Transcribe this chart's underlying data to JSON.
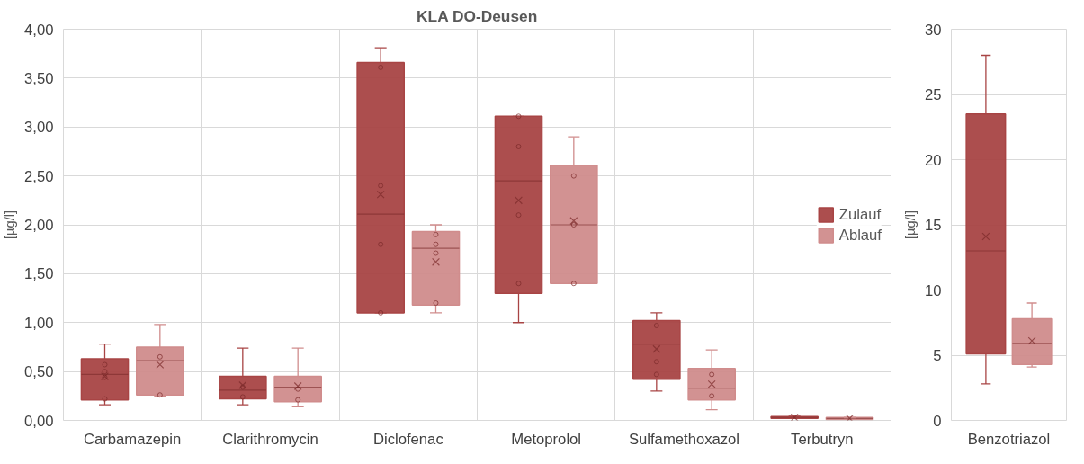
{
  "chart_data": [
    {
      "type": "box",
      "title": "KLA DO-Deusen",
      "ylabel": "[µg/l]",
      "categories": [
        "Carbamazepin",
        "Clarithromycin",
        "Diclofenac",
        "Metoprolol",
        "Sulfamethoxazol",
        "Terbutryn"
      ],
      "ylim": [
        0,
        4
      ],
      "yticks": [
        {
          "value": 0,
          "label": "0,00"
        },
        {
          "value": 0.5,
          "label": "0,50"
        },
        {
          "value": 1,
          "label": "1,00"
        },
        {
          "value": 1.5,
          "label": "1,50"
        },
        {
          "value": 2,
          "label": "2,00"
        },
        {
          "value": 2.5,
          "label": "2,50"
        },
        {
          "value": 3,
          "label": "3,00"
        },
        {
          "value": 3.5,
          "label": "3,50"
        },
        {
          "value": 4,
          "label": "4,00"
        }
      ],
      "grid": true,
      "legend": "right",
      "series": [
        {
          "name": "Zulauf",
          "color": "#a84444",
          "boxes": [
            {
              "low": 0.16,
              "q1": 0.21,
              "median": 0.47,
              "q3": 0.63,
              "high": 0.78,
              "mean": 0.45,
              "outliers": [
                0.57,
                0.5,
                0.44,
                0.22
              ]
            },
            {
              "low": 0.16,
              "q1": 0.22,
              "median": 0.31,
              "q3": 0.45,
              "high": 0.74,
              "mean": 0.36,
              "outliers": [
                0.34,
                0.24
              ]
            },
            {
              "low": 1.1,
              "q1": 1.1,
              "median": 2.11,
              "q3": 3.66,
              "high": 3.81,
              "mean": 2.31,
              "outliers": [
                3.61,
                2.4,
                1.8,
                1.1
              ]
            },
            {
              "low": 1.0,
              "q1": 1.3,
              "median": 2.45,
              "q3": 3.11,
              "high": 3.11,
              "mean": 2.25,
              "outliers": [
                3.11,
                2.8,
                2.1,
                1.4
              ]
            },
            {
              "low": 0.3,
              "q1": 0.42,
              "median": 0.78,
              "q3": 1.02,
              "high": 1.1,
              "mean": 0.73,
              "outliers": [
                0.97,
                0.6,
                0.47
              ]
            },
            {
              "low": 0.02,
              "q1": 0.02,
              "median": 0.03,
              "q3": 0.04,
              "high": 0.05,
              "mean": 0.03
            }
          ]
        },
        {
          "name": "Ablauf",
          "color": "#d08c8c",
          "boxes": [
            {
              "low": 0.25,
              "q1": 0.26,
              "median": 0.61,
              "q3": 0.75,
              "high": 0.98,
              "mean": 0.57,
              "outliers": [
                0.65,
                0.26
              ]
            },
            {
              "low": 0.14,
              "q1": 0.19,
              "median": 0.34,
              "q3": 0.45,
              "high": 0.74,
              "mean": 0.35,
              "outliers": [
                0.32,
                0.21
              ]
            },
            {
              "low": 1.1,
              "q1": 1.18,
              "median": 1.76,
              "q3": 1.93,
              "high": 2.0,
              "mean": 1.62,
              "outliers": [
                1.9,
                1.8,
                1.71,
                1.2
              ]
            },
            {
              "low": 1.4,
              "q1": 1.4,
              "median": 2.0,
              "q3": 2.61,
              "high": 2.9,
              "mean": 2.04,
              "outliers": [
                2.5,
                2.0,
                1.4
              ]
            },
            {
              "low": 0.11,
              "q1": 0.21,
              "median": 0.33,
              "q3": 0.53,
              "high": 0.72,
              "mean": 0.37,
              "outliers": [
                0.47,
                0.25
              ]
            },
            {
              "low": 0.01,
              "q1": 0.01,
              "median": 0.02,
              "q3": 0.03,
              "high": 0.03,
              "mean": 0.02
            }
          ]
        }
      ]
    },
    {
      "type": "box",
      "ylabel": "[µg/l]",
      "categories": [
        "Benzotriazol"
      ],
      "ylim": [
        0,
        30
      ],
      "yticks": [
        0,
        5,
        10,
        15,
        20,
        25,
        30
      ],
      "grid": true,
      "series": [
        {
          "color": "#a84444",
          "boxes": [
            {
              "low": 2.8,
              "q1": 5.1,
              "median": 13.0,
              "q3": 23.5,
              "high": 28.0,
              "mean": 14.1
            }
          ]
        },
        {
          "color": "#d08c8c",
          "boxes": [
            {
              "low": 4.1,
              "q1": 4.3,
              "median": 5.9,
              "q3": 7.8,
              "high": 9.0,
              "mean": 6.1
            }
          ]
        }
      ]
    }
  ]
}
